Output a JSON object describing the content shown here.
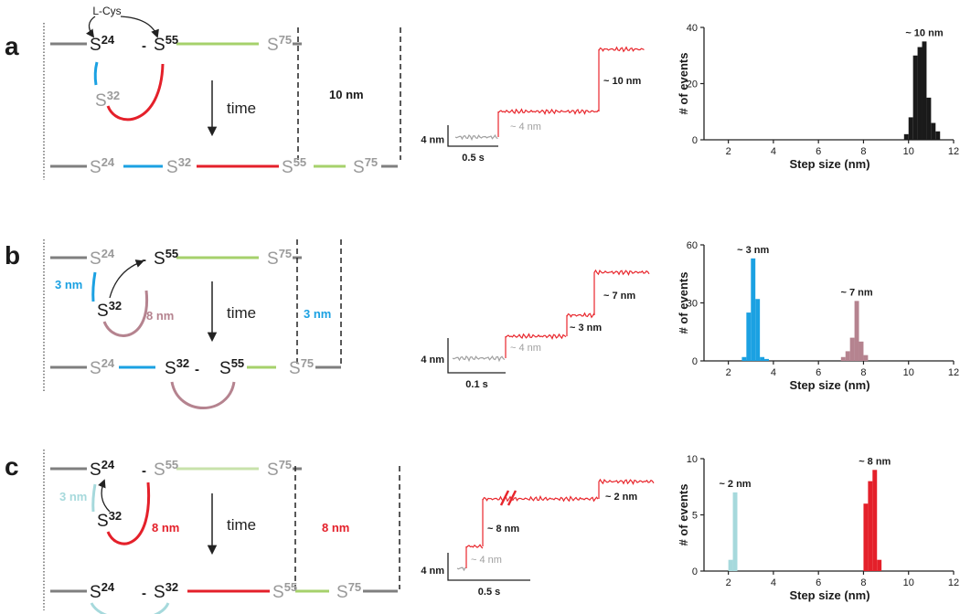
{
  "panels": [
    {
      "label": "a",
      "reagent": "L-Cys",
      "separator": "-",
      "top": [
        {
          "letter": "S",
          "number": "24"
        },
        {
          "letter": "S",
          "number": "55"
        },
        {
          "letter": "S",
          "number": "75"
        }
      ],
      "loop_site": {
        "letter": "S",
        "number": "32"
      },
      "bottom": [
        {
          "letter": "S",
          "number": "24"
        },
        {
          "letter": "S",
          "number": "32"
        },
        {
          "letter": "S",
          "number": "55"
        },
        {
          "letter": "S",
          "number": "75"
        }
      ],
      "time": "time",
      "distance": "10 nm",
      "trace": {
        "steps": [
          "~ 4 nm",
          "~ 10 nm"
        ],
        "scale_y": "4 nm",
        "scale_x": "0.5 s"
      }
    },
    {
      "label": "b",
      "separator": "-",
      "top": [
        {
          "letter": "S",
          "number": "24"
        },
        {
          "letter": "S",
          "number": "55"
        },
        {
          "letter": "S",
          "number": "75"
        }
      ],
      "loop_site": {
        "letter": "S",
        "number": "32"
      },
      "loop_labels": [
        "3 nm",
        "8 nm"
      ],
      "bottom": [
        {
          "letter": "S",
          "number": "24"
        },
        {
          "letter": "S",
          "number": "32"
        },
        {
          "letter": "S",
          "number": "55"
        },
        {
          "letter": "S",
          "number": "75"
        }
      ],
      "time": "time",
      "distance": "3 nm",
      "trace": {
        "steps": [
          "~ 4 nm",
          "~ 3 nm",
          "~ 7 nm"
        ],
        "scale_y": "4 nm",
        "scale_x": "0.1 s"
      }
    },
    {
      "label": "c",
      "separator": "-",
      "top": [
        {
          "letter": "S",
          "number": "24"
        },
        {
          "letter": "S",
          "number": "55"
        },
        {
          "letter": "S",
          "number": "75"
        }
      ],
      "loop_site": {
        "letter": "S",
        "number": "32"
      },
      "loop_labels": [
        "3 nm",
        "8 nm"
      ],
      "bottom": [
        {
          "letter": "S",
          "number": "24"
        },
        {
          "letter": "S",
          "number": "32"
        },
        {
          "letter": "S",
          "number": "55"
        },
        {
          "letter": "S",
          "number": "75"
        }
      ],
      "time": "time",
      "distance": "8 nm",
      "trace": {
        "steps": [
          "~ 4 nm",
          "~ 8 nm",
          "~ 2 nm"
        ],
        "scale_y": "4 nm",
        "scale_x": "0.5 s"
      }
    }
  ],
  "chart_data": [
    {
      "type": "histogram",
      "xlabel": "Step size (nm)",
      "ylabel": "# of events",
      "xlim": [
        1,
        12
      ],
      "xticks": [
        2,
        4,
        6,
        8,
        10,
        12
      ],
      "ylim": [
        0,
        40
      ],
      "yticks": [
        0,
        20,
        40
      ],
      "series": [
        {
          "color": "#1a1a1a",
          "bins": [
            9.8,
            10.0,
            10.2,
            10.4,
            10.6,
            10.8,
            11.0,
            11.2,
            11.4
          ],
          "values": [
            2,
            8,
            30,
            33,
            35,
            15,
            6,
            3
          ]
        }
      ],
      "annotations": [
        "~ 10 nm"
      ]
    },
    {
      "type": "histogram",
      "xlabel": "Step size (nm)",
      "ylabel": "# of events",
      "xlim": [
        1,
        12
      ],
      "xticks": [
        2,
        4,
        6,
        8,
        10,
        12
      ],
      "ylim": [
        0,
        60
      ],
      "yticks": [
        0,
        30,
        60
      ],
      "series": [
        {
          "color": "#1ba1e2",
          "bins": [
            2.6,
            2.8,
            3.0,
            3.2,
            3.4,
            3.6,
            3.8
          ],
          "values": [
            2,
            25,
            53,
            32,
            2,
            1
          ]
        },
        {
          "color": "#b5838f",
          "bins": [
            7.0,
            7.2,
            7.4,
            7.6,
            7.8,
            8.0,
            8.2
          ],
          "values": [
            2,
            5,
            12,
            31,
            10,
            3
          ]
        }
      ],
      "annotations": [
        "~ 3 nm",
        "~ 7 nm"
      ]
    },
    {
      "type": "histogram",
      "xlabel": "Step size (nm)",
      "ylabel": "# of events",
      "xlim": [
        1,
        12
      ],
      "xticks": [
        2,
        4,
        6,
        8,
        10,
        12
      ],
      "ylim": [
        0,
        10
      ],
      "yticks": [
        0,
        5,
        10
      ],
      "series": [
        {
          "color": "#a6d9dc",
          "bins": [
            2.0,
            2.2,
            2.4
          ],
          "values": [
            1,
            7
          ]
        },
        {
          "color": "#e4202a",
          "bins": [
            8.0,
            8.2,
            8.4,
            8.6,
            8.8
          ],
          "values": [
            6,
            8,
            9,
            1
          ]
        }
      ],
      "annotations": [
        "~ 2 nm",
        "~ 8 nm"
      ]
    }
  ]
}
